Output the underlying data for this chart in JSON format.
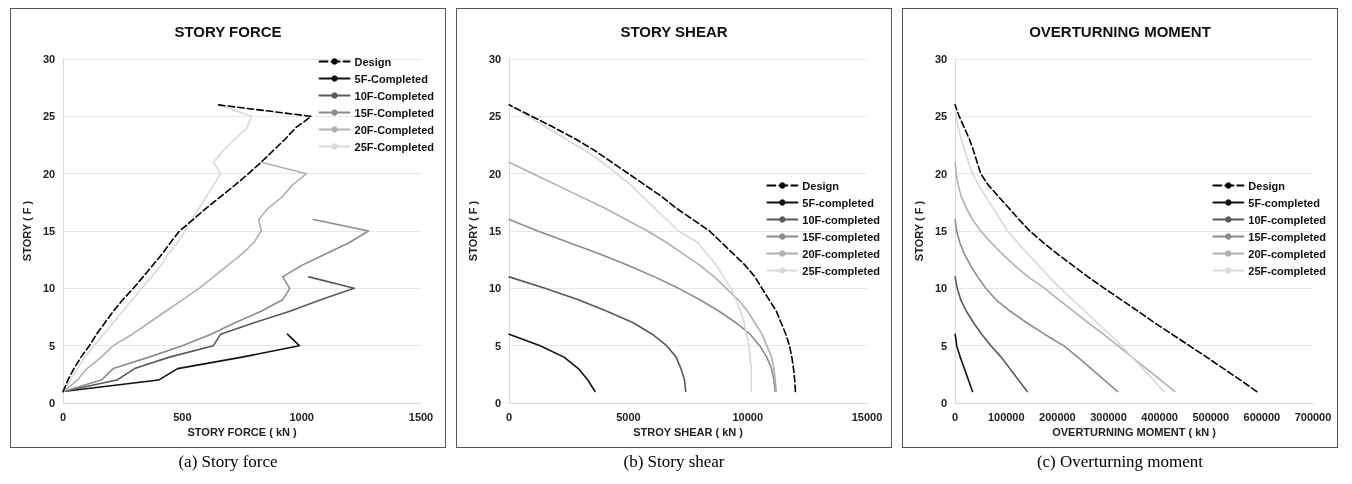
{
  "chart_data": [
    {
      "type": "line",
      "title": "STORY FORCE",
      "xlabel": "STORY FORCE ( kN )",
      "ylabel": "STORY ( F )",
      "annotations": [
        "(a) Story force"
      ],
      "xlim": [
        0,
        1500
      ],
      "xticks": [
        0,
        500,
        1000,
        1500
      ],
      "ylim": [
        0,
        30
      ],
      "yticks": [
        0,
        5,
        10,
        15,
        20,
        25,
        30
      ],
      "grid": "y",
      "legend": "top right",
      "marker": "none",
      "series": [
        {
          "name": "Design",
          "color": "#000000",
          "line_style": "dashed",
          "x": [
            0,
            20,
            45,
            75,
            110,
            140,
            175,
            210,
            250,
            294,
            335,
            375,
            415,
            450,
            488,
            545,
            600,
            660,
            720,
            777,
            830,
            880,
            930,
            975,
            1040,
            651
          ],
          "values": [
            1,
            2,
            3,
            4,
            5,
            6,
            7,
            8,
            9,
            10,
            11,
            12,
            13,
            14,
            15,
            16,
            17,
            18,
            19,
            20,
            21,
            22,
            23,
            24,
            25,
            26
          ]
        },
        {
          "name": "5F-Completed",
          "color": "#111111",
          "x": [
            0,
            400,
            480,
            750,
            990,
            940
          ],
          "values": [
            1,
            2,
            3,
            4,
            5,
            6
          ]
        },
        {
          "name": "10F-Completed",
          "color": "#595959",
          "x": [
            0,
            225,
            300,
            445,
            630,
            660,
            800,
            950,
            1080,
            1220,
            1030
          ],
          "values": [
            1,
            2,
            3,
            4,
            5,
            6,
            7,
            8,
            9,
            10,
            11
          ]
        },
        {
          "name": "15F-Completed",
          "color": "#8c8c8c",
          "x": [
            0,
            160,
            210,
            360,
            500,
            620,
            720,
            830,
            920,
            950,
            920,
            1000,
            1100,
            1200,
            1280,
            1050
          ],
          "values": [
            1,
            2,
            3,
            4,
            5,
            6,
            7,
            8,
            9,
            10,
            11,
            12,
            13,
            14,
            15,
            16
          ]
        },
        {
          "name": "20F-Completed",
          "color": "#b0b0b0",
          "x": [
            0,
            60,
            100,
            160,
            210,
            290,
            360,
            430,
            500,
            570,
            630,
            690,
            750,
            800,
            830,
            820,
            860,
            920,
            960,
            1020,
            830
          ],
          "values": [
            1,
            2,
            3,
            4,
            5,
            6,
            7,
            8,
            9,
            10,
            11,
            12,
            13,
            14,
            15,
            16,
            17,
            18,
            19,
            20,
            21
          ]
        },
        {
          "name": "25F-Completed",
          "color": "#d9d9d9",
          "x": [
            0,
            30,
            60,
            90,
            130,
            170,
            210,
            250,
            290,
            330,
            370,
            410,
            440,
            480,
            510,
            540,
            570,
            600,
            630,
            660,
            630,
            670,
            720,
            770,
            790,
            650
          ],
          "values": [
            1,
            2,
            3,
            4,
            5,
            6,
            7,
            8,
            9,
            10,
            11,
            12,
            13,
            14,
            15,
            16,
            17,
            18,
            19,
            20,
            21,
            22,
            23,
            24,
            25,
            26
          ]
        }
      ]
    },
    {
      "type": "line",
      "title": "STORY SHEAR",
      "xlabel": "STROY SHEAR ( kN )",
      "ylabel": "STORY ( F )",
      "annotations": [
        "(b) Story shear"
      ],
      "xlim": [
        0,
        15000
      ],
      "xticks": [
        0,
        5000,
        10000,
        15000
      ],
      "ylim": [
        0,
        30
      ],
      "yticks": [
        0,
        5,
        10,
        15,
        20,
        25,
        30
      ],
      "grid": "y",
      "legend": "right",
      "marker": "none",
      "series": [
        {
          "name": "Design",
          "color": "#000000",
          "line_style": "dashed",
          "x": [
            12000,
            11970,
            11920,
            11850,
            11750,
            11600,
            11400,
            11200,
            10900,
            10600,
            10300,
            9900,
            9400,
            8900,
            8400,
            7700,
            7000,
            6400,
            5700,
            5000,
            4300,
            3600,
            2800,
            1900,
            950,
            0
          ],
          "values": [
            1,
            2,
            3,
            4,
            5,
            6,
            7,
            8,
            9,
            10,
            11,
            12,
            13,
            14,
            15,
            16,
            17,
            18,
            19,
            20,
            21,
            22,
            23,
            24,
            25,
            26
          ]
        },
        {
          "name": "5F-completed",
          "color": "#111111",
          "x": [
            3600,
            3300,
            2900,
            2300,
            1300,
            0
          ],
          "values": [
            1,
            2,
            3,
            4,
            5,
            6
          ]
        },
        {
          "name": "10F-completed",
          "color": "#595959",
          "x": [
            7400,
            7350,
            7200,
            7000,
            6600,
            6000,
            5200,
            4100,
            2900,
            1500,
            0
          ],
          "values": [
            1,
            2,
            3,
            4,
            5,
            6,
            7,
            8,
            9,
            10,
            11
          ]
        },
        {
          "name": "15F-completed",
          "color": "#8c8c8c",
          "x": [
            11150,
            11100,
            11000,
            10800,
            10500,
            10100,
            9500,
            8800,
            8000,
            7100,
            6100,
            5000,
            3800,
            2500,
            1200,
            0
          ],
          "values": [
            1,
            2,
            3,
            4,
            5,
            6,
            7,
            8,
            9,
            10,
            11,
            12,
            13,
            14,
            15,
            16
          ]
        },
        {
          "name": "20F-completed",
          "color": "#b0b0b0",
          "x": [
            11200,
            11150,
            11100,
            11000,
            10800,
            10600,
            10300,
            10000,
            9600,
            9100,
            8600,
            8000,
            7300,
            6600,
            5800,
            4900,
            4000,
            3000,
            2000,
            1000,
            0
          ],
          "values": [
            1,
            2,
            3,
            4,
            5,
            6,
            7,
            8,
            9,
            10,
            11,
            12,
            13,
            14,
            15,
            16,
            17,
            18,
            19,
            20,
            21
          ]
        },
        {
          "name": "25F-completed",
          "color": "#d9d9d9",
          "x": [
            10150,
            10150,
            10150,
            10100,
            10050,
            9950,
            9850,
            9700,
            9500,
            9300,
            9000,
            8700,
            8300,
            7900,
            7100,
            6600,
            6100,
            5600,
            5100,
            4500,
            3900,
            3200,
            2400,
            1600,
            800,
            0
          ],
          "values": [
            1,
            2,
            3,
            4,
            5,
            6,
            7,
            8,
            9,
            10,
            11,
            12,
            13,
            14,
            15,
            16,
            17,
            18,
            19,
            20,
            21,
            22,
            23,
            24,
            25,
            26
          ]
        }
      ]
    },
    {
      "type": "line",
      "title": "OVERTURNING MOMENT",
      "xlabel": "OVERTURNING MOMENT ( kN )",
      "ylabel": "STORY ( F )",
      "annotations": [
        "(c) Overturning moment"
      ],
      "xlim": [
        0,
        700000
      ],
      "xticks": [
        0,
        100000,
        200000,
        300000,
        400000,
        500000,
        600000,
        700000
      ],
      "ylim": [
        0,
        30
      ],
      "yticks": [
        0,
        5,
        10,
        15,
        20,
        25,
        30
      ],
      "grid": "y",
      "legend": "right",
      "marker": "none",
      "series": [
        {
          "name": "Design",
          "color": "#000000",
          "line_style": "dashed",
          "x": [
            590000,
            558000,
            525000,
            492000,
            458000,
            424000,
            390000,
            358000,
            325000,
            292000,
            260000,
            230000,
            200000,
            172000,
            146000,
            125000,
            105000,
            85000,
            65000,
            50000,
            43000,
            36000,
            28000,
            18000,
            8000,
            0
          ],
          "values": [
            1,
            2,
            3,
            4,
            5,
            6,
            7,
            8,
            9,
            10,
            11,
            12,
            13,
            14,
            15,
            16,
            17,
            18,
            19,
            20,
            21,
            22,
            23,
            24,
            25,
            26
          ]
        },
        {
          "name": "5F-completed",
          "color": "#111111",
          "x": [
            34000,
            26000,
            18000,
            10000,
            3000,
            0
          ],
          "values": [
            1,
            2,
            3,
            4,
            5,
            6
          ]
        },
        {
          "name": "10F-completed",
          "color": "#595959",
          "x": [
            141000,
            124000,
            107000,
            90000,
            70000,
            52000,
            36000,
            22000,
            11000,
            4000,
            0
          ],
          "values": [
            1,
            2,
            3,
            4,
            5,
            6,
            7,
            8,
            9,
            10,
            11
          ]
        },
        {
          "name": "15F-completed",
          "color": "#8c8c8c",
          "x": [
            318000,
            292000,
            266000,
            240000,
            212000,
            175000,
            140000,
            108000,
            80000,
            60000,
            44000,
            30000,
            18000,
            9000,
            3000,
            0
          ],
          "values": [
            1,
            2,
            3,
            4,
            5,
            6,
            7,
            8,
            9,
            10,
            11,
            12,
            13,
            14,
            15,
            16
          ]
        },
        {
          "name": "20F-completed",
          "color": "#b0b0b0",
          "x": [
            430000,
            402000,
            374000,
            346000,
            318000,
            290000,
            260000,
            232000,
            203000,
            175000,
            143000,
            116000,
            92000,
            70000,
            50000,
            34000,
            22000,
            12000,
            6000,
            2000,
            0
          ],
          "values": [
            1,
            2,
            3,
            4,
            5,
            6,
            7,
            8,
            9,
            10,
            11,
            12,
            13,
            14,
            15,
            16,
            17,
            18,
            19,
            20,
            21
          ]
        },
        {
          "name": "25F-completed",
          "color": "#d9d9d9",
          "x": [
            408000,
            388000,
            367000,
            346000,
            325000,
            302000,
            278000,
            254000,
            230000,
            206000,
            184000,
            163000,
            142000,
            122000,
            103000,
            88000,
            74000,
            60000,
            46000,
            34000,
            26000,
            19000,
            12000,
            6000,
            2000,
            0
          ],
          "values": [
            1,
            2,
            3,
            4,
            5,
            6,
            7,
            8,
            9,
            10,
            11,
            12,
            13,
            14,
            15,
            16,
            17,
            18,
            19,
            20,
            21,
            22,
            23,
            24,
            25,
            26
          ]
        }
      ]
    }
  ]
}
